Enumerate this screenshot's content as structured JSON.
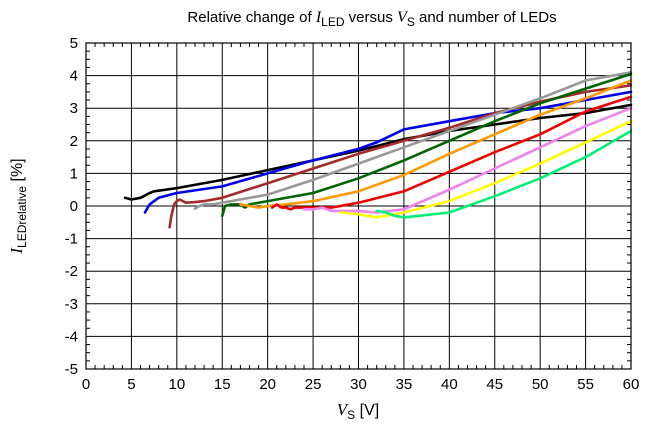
{
  "chart_data": {
    "type": "line",
    "title": {
      "prefix": "Relative change of ",
      "var1": "I",
      "var1_sub": "LED",
      "middle": " versus ",
      "var2": "V",
      "var2_sub": "S",
      "suffix": " and number of LEDs"
    },
    "xlabel": {
      "var": "V",
      "sub": "S",
      "unit": " [V]"
    },
    "ylabel": {
      "var": "I",
      "sub": "LEDrelative",
      "unit": " [%]"
    },
    "xlim": [
      0,
      60
    ],
    "ylim": [
      -5,
      5
    ],
    "xticks": [
      "0",
      "5",
      "10",
      "15",
      "20",
      "25",
      "30",
      "35",
      "40",
      "45",
      "50",
      "55",
      "60"
    ],
    "yticks": [
      "5",
      "4",
      "3",
      "2",
      "1",
      "0",
      "-1",
      "-2",
      "-3",
      "-4",
      "-5"
    ],
    "grid": true,
    "series": [
      {
        "color": "#000000",
        "points": [
          [
            4.3,
            0.25
          ],
          [
            5,
            0.2
          ],
          [
            6,
            0.25
          ],
          [
            7,
            0.4
          ],
          [
            7.5,
            0.45
          ],
          [
            10,
            0.55
          ],
          [
            15,
            0.8
          ],
          [
            20,
            1.1
          ],
          [
            25,
            1.4
          ],
          [
            30,
            1.7
          ],
          [
            35,
            2.05
          ],
          [
            40,
            2.3
          ],
          [
            45,
            2.5
          ],
          [
            50,
            2.7
          ],
          [
            55,
            2.85
          ],
          [
            60,
            3.1
          ]
        ]
      },
      {
        "color": "#0000ee",
        "points": [
          [
            6.5,
            -0.2
          ],
          [
            7,
            0.05
          ],
          [
            7.5,
            0.15
          ],
          [
            8,
            0.25
          ],
          [
            10,
            0.4
          ],
          [
            15,
            0.6
          ],
          [
            20,
            1.0
          ],
          [
            25,
            1.4
          ],
          [
            30,
            1.75
          ],
          [
            32,
            1.95
          ],
          [
            35,
            2.35
          ],
          [
            40,
            2.6
          ],
          [
            45,
            2.85
          ],
          [
            50,
            3.0
          ],
          [
            55,
            3.25
          ],
          [
            60,
            3.5
          ]
        ]
      },
      {
        "color": "#a52a2a",
        "points": [
          [
            9.2,
            -0.65
          ],
          [
            9.4,
            -0.3
          ],
          [
            9.7,
            0.05
          ],
          [
            10,
            0.15
          ],
          [
            10.3,
            0.2
          ],
          [
            11,
            0.1
          ],
          [
            12,
            0.12
          ],
          [
            13,
            0.15
          ],
          [
            15,
            0.25
          ],
          [
            20,
            0.7
          ],
          [
            25,
            1.15
          ],
          [
            30,
            1.6
          ],
          [
            35,
            2.0
          ],
          [
            40,
            2.4
          ],
          [
            45,
            2.85
          ],
          [
            50,
            3.2
          ],
          [
            55,
            3.5
          ],
          [
            60,
            3.7
          ]
        ]
      },
      {
        "color": "#999999",
        "points": [
          [
            12,
            -0.08
          ],
          [
            12.5,
            0.0
          ],
          [
            13,
            0.05
          ],
          [
            14,
            0.05
          ],
          [
            15,
            0.1
          ],
          [
            17,
            0.2
          ],
          [
            20,
            0.35
          ],
          [
            25,
            0.8
          ],
          [
            30,
            1.3
          ],
          [
            35,
            1.8
          ],
          [
            40,
            2.3
          ],
          [
            45,
            2.8
          ],
          [
            50,
            3.3
          ],
          [
            55,
            3.85
          ],
          [
            60,
            4.1
          ]
        ]
      },
      {
        "color": "#006400",
        "points": [
          [
            15,
            -0.3
          ],
          [
            15.3,
            0.0
          ],
          [
            16,
            0.05
          ],
          [
            17,
            0.05
          ],
          [
            17.5,
            -0.05
          ],
          [
            18,
            0.05
          ],
          [
            20,
            0.15
          ],
          [
            25,
            0.4
          ],
          [
            30,
            0.85
          ],
          [
            35,
            1.4
          ],
          [
            40,
            2.0
          ],
          [
            45,
            2.6
          ],
          [
            50,
            3.15
          ],
          [
            55,
            3.6
          ],
          [
            60,
            4.05
          ]
        ]
      },
      {
        "color": "#ff9900",
        "points": [
          [
            17,
            0.05
          ],
          [
            18,
            0.0
          ],
          [
            19,
            -0.05
          ],
          [
            20,
            0.0
          ],
          [
            22,
            0.05
          ],
          [
            25,
            0.15
          ],
          [
            30,
            0.45
          ],
          [
            35,
            0.95
          ],
          [
            40,
            1.6
          ],
          [
            45,
            2.2
          ],
          [
            50,
            2.8
          ],
          [
            55,
            3.3
          ],
          [
            60,
            3.85
          ]
        ]
      },
      {
        "color": "#ee0000",
        "points": [
          [
            20.5,
            -0.05
          ],
          [
            21,
            0.05
          ],
          [
            21.5,
            -0.05
          ],
          [
            22,
            -0.05
          ],
          [
            22.5,
            -0.1
          ],
          [
            23,
            -0.05
          ],
          [
            24,
            -0.05
          ],
          [
            25,
            -0.05
          ],
          [
            27,
            -0.05
          ],
          [
            30,
            0.1
          ],
          [
            35,
            0.45
          ],
          [
            40,
            1.05
          ],
          [
            45,
            1.65
          ],
          [
            50,
            2.2
          ],
          [
            55,
            2.9
          ],
          [
            60,
            3.35
          ]
        ]
      },
      {
        "color": "#ee82ee",
        "points": [
          [
            24,
            -0.1
          ],
          [
            25,
            -0.1
          ],
          [
            26,
            -0.05
          ],
          [
            27,
            -0.15
          ],
          [
            28,
            -0.15
          ],
          [
            30,
            -0.15
          ],
          [
            32,
            -0.2
          ],
          [
            35,
            -0.1
          ],
          [
            40,
            0.5
          ],
          [
            45,
            1.15
          ],
          [
            50,
            1.8
          ],
          [
            55,
            2.45
          ],
          [
            60,
            3.0
          ]
        ]
      },
      {
        "color": "#ffff00",
        "points": [
          [
            28,
            -0.2
          ],
          [
            30,
            -0.25
          ],
          [
            32,
            -0.35
          ],
          [
            34,
            -0.25
          ],
          [
            35,
            -0.2
          ],
          [
            40,
            0.15
          ],
          [
            45,
            0.7
          ],
          [
            50,
            1.3
          ],
          [
            55,
            1.95
          ],
          [
            60,
            2.6
          ]
        ]
      },
      {
        "color": "#00ee77",
        "points": [
          [
            32,
            -0.15
          ],
          [
            33,
            -0.2
          ],
          [
            34,
            -0.3
          ],
          [
            35,
            -0.35
          ],
          [
            40,
            -0.2
          ],
          [
            45,
            0.3
          ],
          [
            50,
            0.85
          ],
          [
            55,
            1.5
          ],
          [
            60,
            2.3
          ]
        ]
      }
    ]
  }
}
